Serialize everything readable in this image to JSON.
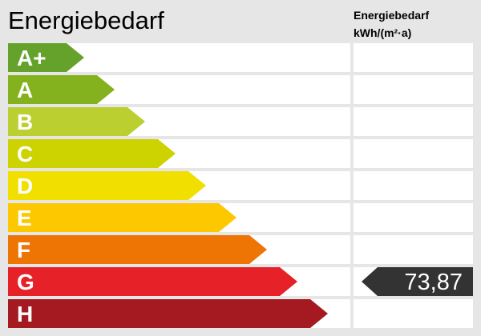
{
  "chart_data": {
    "type": "bar",
    "title": "Energiebedarf",
    "value_header": [
      "Energiebedarf",
      "kWh/(m²·a)"
    ],
    "categories": [
      "A+",
      "A",
      "B",
      "C",
      "D",
      "E",
      "F",
      "G",
      "H"
    ],
    "colors": [
      "#65a22c",
      "#84b21e",
      "#bbcf31",
      "#cdd300",
      "#f1df00",
      "#fdc800",
      "#ee7404",
      "#e62228",
      "#a41a20"
    ],
    "marker": {
      "category": "G",
      "value": "73,87",
      "color": "#333333"
    }
  }
}
